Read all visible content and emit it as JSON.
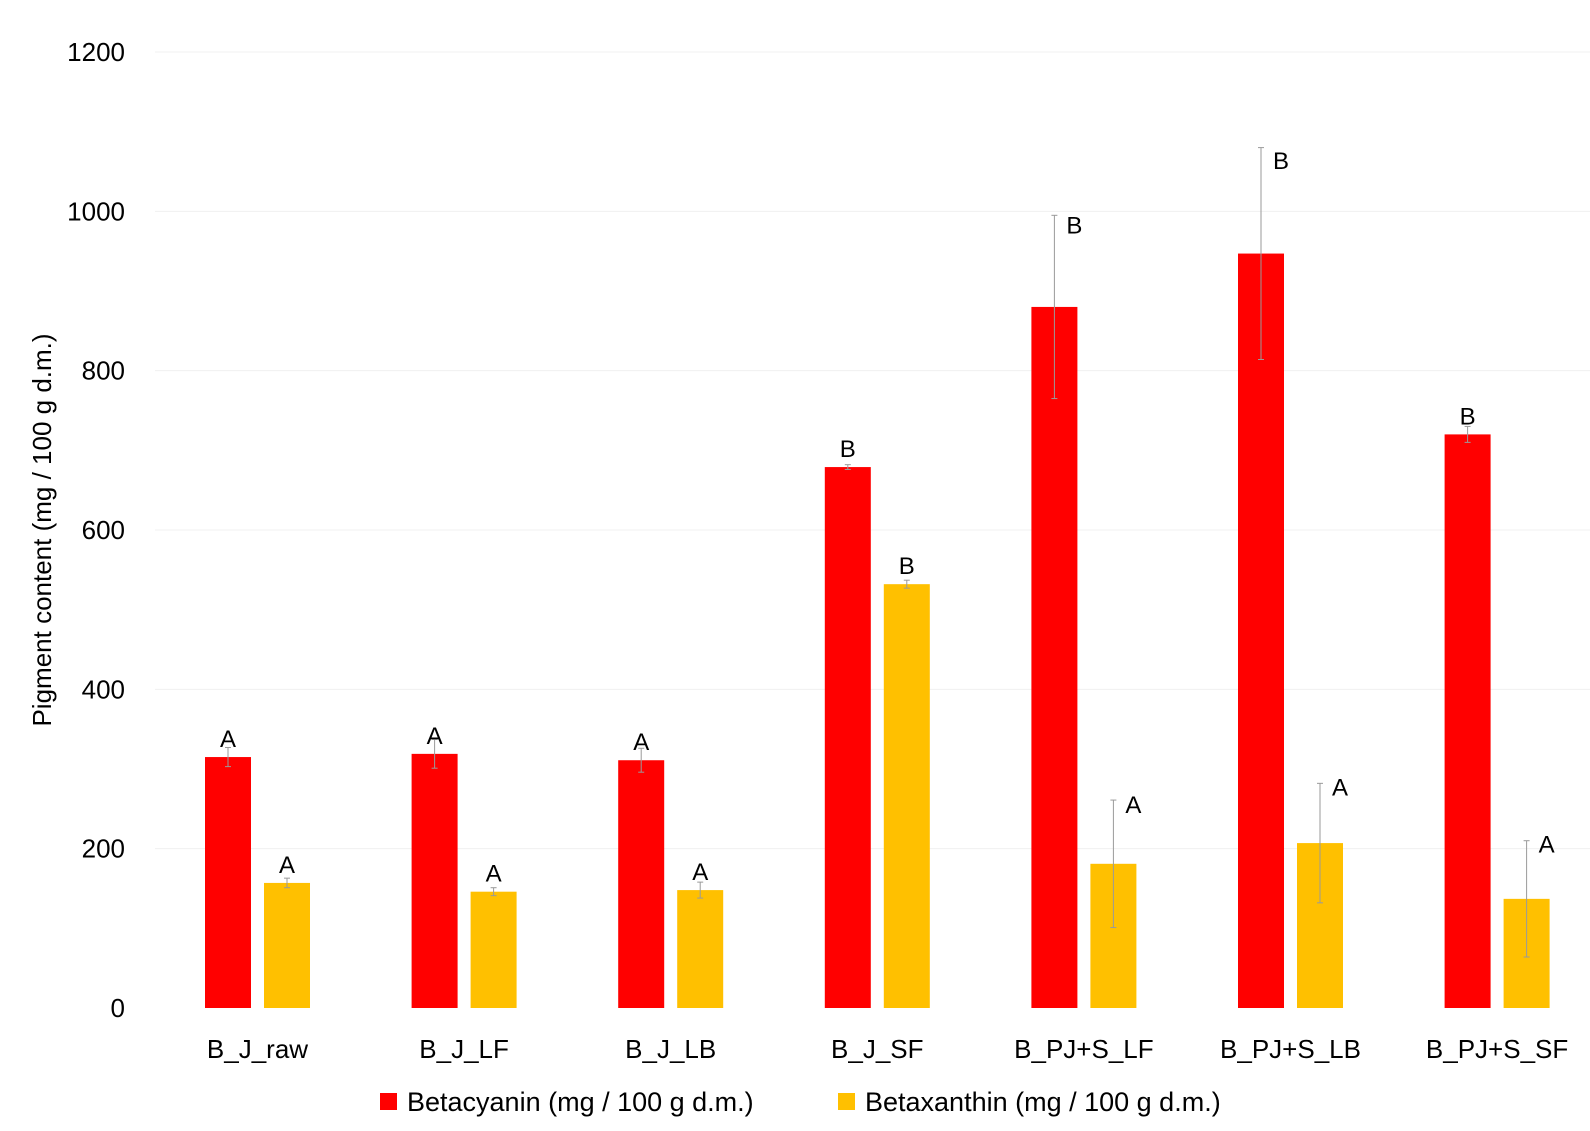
{
  "chart_data": {
    "type": "bar",
    "title": "",
    "xlabel": "",
    "ylabel": "Pigment content  (mg / 100 g d.m.)",
    "ylim": [
      0,
      1200
    ],
    "yticks": [
      0,
      200,
      400,
      600,
      800,
      1000,
      1200
    ],
    "grid": true,
    "legend_position": "bottom",
    "categories": [
      "B_J_raw",
      "B_J_LF",
      "B_J_LB",
      "B_J_SF",
      "B_PJ+S_LF",
      "B_PJ+S_LB",
      "B_PJ+S_SF"
    ],
    "series": [
      {
        "name": "Betacyanin (mg / 100 g d.m.)",
        "color": "#ff0000",
        "values": [
          315,
          319,
          311,
          679,
          880,
          947,
          720
        ],
        "errors": [
          12,
          18,
          15,
          3,
          115,
          133,
          10
        ],
        "labels": [
          "A",
          "A",
          "A",
          "B",
          "B",
          "B",
          "B"
        ]
      },
      {
        "name": "Betaxanthin (mg / 100 g d.m.)",
        "color": "#ffc000",
        "values": [
          157,
          146,
          148,
          532,
          181,
          207,
          137
        ],
        "errors": [
          6,
          5,
          10,
          5,
          80,
          75,
          73
        ],
        "labels": [
          "A",
          "A",
          "A",
          "B",
          "A",
          "A",
          "A"
        ]
      }
    ]
  }
}
